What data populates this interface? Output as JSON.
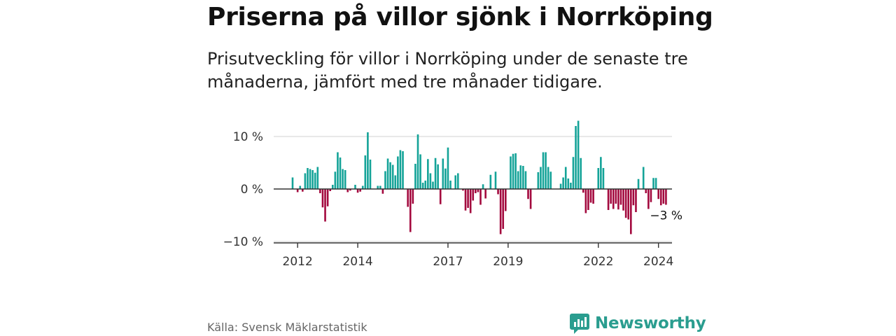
{
  "title": "Priserna på villor sjönk i Norrköping",
  "subtitle": "Prisutveckling för villor i Norrköping under de senaste tre månaderna, jämfört med tre månader tidigare.",
  "source": "Källa: Svensk Mäklarstatistik",
  "brand": "Newsworthy",
  "colors": {
    "positive": "#14a398",
    "negative": "#a3093e",
    "brand": "#2a9d8f"
  },
  "chart_data": {
    "type": "bar",
    "title": "Priserna på villor sjönk i Norrköping",
    "xlabel": "",
    "ylabel": "",
    "ylim": [
      -10,
      13
    ],
    "y_ticks": [
      {
        "value": 10,
        "label": "10 %"
      },
      {
        "value": 0,
        "label": "0 %"
      },
      {
        "value": -10,
        "label": "−10 %"
      }
    ],
    "x_ticks": [
      {
        "year": 2012,
        "label": "2012"
      },
      {
        "year": 2014,
        "label": "2014"
      },
      {
        "year": 2017,
        "label": "2017"
      },
      {
        "year": 2019,
        "label": "2019"
      },
      {
        "year": 2022,
        "label": "2022"
      },
      {
        "year": 2024,
        "label": "2024"
      }
    ],
    "start": {
      "year": 2011,
      "month": 11
    },
    "series": [
      {
        "name": "Prisutveckling",
        "unit": "%",
        "values": [
          2.2,
          0,
          -0.6,
          0.6,
          -0.5,
          3.0,
          4.0,
          3.8,
          3.6,
          3.1,
          4.2,
          -0.8,
          -3.5,
          -6.2,
          -3.3,
          -0.4,
          0.8,
          3.3,
          7.0,
          6.0,
          3.8,
          3.6,
          -0.6,
          -0.3,
          0,
          0.8,
          -0.7,
          -0.5,
          0.6,
          6.4,
          10.8,
          5.6,
          0,
          0,
          0.6,
          0.6,
          -0.9,
          3.4,
          5.8,
          5.1,
          4.6,
          2.6,
          6.2,
          7.4,
          7.2,
          0,
          -3.4,
          -8.2,
          -2.8,
          4.8,
          10.4,
          6.6,
          1.2,
          1.6,
          5.7,
          3.0,
          1.4,
          5.9,
          4.7,
          -2.9,
          5.8,
          3.9,
          7.9,
          1.6,
          0,
          2.6,
          3.0,
          0,
          -0.3,
          -4.1,
          -3.6,
          -4.6,
          -2.2,
          -0.8,
          -0.6,
          -3.0,
          0.9,
          -1.8,
          0,
          2.7,
          0,
          3.3,
          -1.0,
          -8.6,
          -7.6,
          -4.2,
          0,
          6.2,
          6.7,
          6.8,
          3.4,
          4.5,
          4.4,
          3.4,
          -1.9,
          -3.8,
          0,
          0,
          3.2,
          4.2,
          7.0,
          7.0,
          4.2,
          3.3,
          0,
          0,
          0,
          1.0,
          2.2,
          4.2,
          2.0,
          1.2,
          6.1,
          12.0,
          13.0,
          5.9,
          -0.7,
          -4.6,
          -4.0,
          -2.6,
          -2.8,
          0,
          4.0,
          6.1,
          4.0,
          0,
          -4.0,
          -2.8,
          -3.8,
          -2.8,
          -3.9,
          -3.0,
          -4.1,
          -5.5,
          -5.8,
          -8.6,
          -3.1,
          -4.4,
          1.9,
          0,
          4.2,
          -0.8,
          -3.8,
          -2.5,
          2.1,
          2.1,
          -1.9,
          -3.1,
          -2.8,
          -3.0
        ],
        "last_label": "−3 %"
      }
    ]
  }
}
